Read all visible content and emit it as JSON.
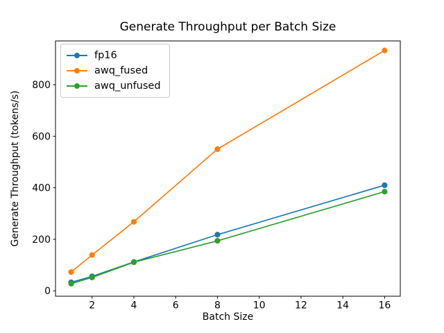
{
  "chart_data": {
    "type": "line",
    "title": "Generate Throughput per Batch Size",
    "xlabel": "Batch Size",
    "ylabel": "Generate Throughput (tokens/s)",
    "x": [
      1,
      2,
      4,
      8,
      16
    ],
    "series": [
      {
        "name": "fp16",
        "color": "#1f77b4",
        "values": [
          33,
          56,
          112,
          218,
          410
        ]
      },
      {
        "name": "awq_fused",
        "color": "#ff7f0e",
        "values": [
          73,
          139,
          268,
          550,
          933
        ]
      },
      {
        "name": "awq_unfused",
        "color": "#2ca02c",
        "values": [
          28,
          52,
          111,
          194,
          385
        ]
      }
    ],
    "x_ticks": [
      2,
      4,
      6,
      8,
      10,
      12,
      14,
      16
    ],
    "y_ticks": [
      0,
      200,
      400,
      600,
      800
    ],
    "xlim": [
      0.25,
      16.75
    ],
    "ylim": [
      -21,
      970
    ],
    "grid": false,
    "legend_position": "upper left",
    "marker": "o",
    "axis_color": "#000000",
    "legend_border_color": "#cccccc"
  }
}
